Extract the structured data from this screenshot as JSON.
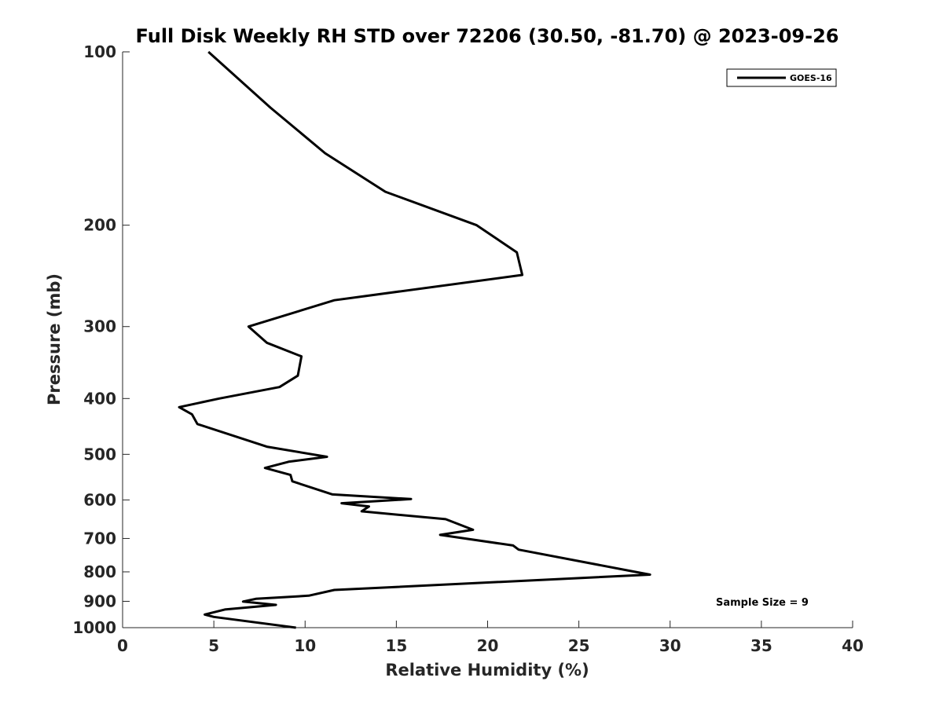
{
  "chart_data": {
    "type": "line",
    "title": "Full Disk Weekly RH STD over 72206 (30.50, -81.70) @ 2023-09-26",
    "xlabel": "Relative Humidity (%)",
    "ylabel": "Pressure (mb)",
    "xlim": [
      0,
      40
    ],
    "ylim": [
      100,
      1000
    ],
    "y_scale": "log",
    "y_reversed": true,
    "x_ticks": [
      0,
      5,
      10,
      15,
      20,
      25,
      30,
      35,
      40
    ],
    "y_ticks": [
      100,
      200,
      300,
      400,
      500,
      600,
      700,
      800,
      900,
      1000
    ],
    "grid": false,
    "legend_position": "top-right",
    "series": [
      {
        "name": "GOES-16",
        "color": "#000000",
        "points": [
          [
            4.7,
            100
          ],
          [
            8.1,
            125
          ],
          [
            11.1,
            150
          ],
          [
            14.4,
            175
          ],
          [
            19.4,
            200
          ],
          [
            21.6,
            223
          ],
          [
            21.9,
            244
          ],
          [
            11.6,
            270
          ],
          [
            6.9,
            300
          ],
          [
            7.9,
            320
          ],
          [
            9.8,
            338
          ],
          [
            9.6,
            365
          ],
          [
            8.6,
            382
          ],
          [
            5.3,
            400
          ],
          [
            3.1,
            414
          ],
          [
            3.8,
            426
          ],
          [
            4.1,
            443
          ],
          [
            7.9,
            485
          ],
          [
            11.2,
            505
          ],
          [
            9.1,
            515
          ],
          [
            7.8,
            528
          ],
          [
            9.2,
            543
          ],
          [
            9.3,
            557
          ],
          [
            11.5,
            587
          ],
          [
            15.8,
            598
          ],
          [
            12.0,
            608
          ],
          [
            13.5,
            616
          ],
          [
            13.1,
            628
          ],
          [
            17.7,
            648
          ],
          [
            19.2,
            676
          ],
          [
            17.4,
            690
          ],
          [
            21.4,
            720
          ],
          [
            21.7,
            732
          ],
          [
            28.1,
            800
          ],
          [
            28.9,
            809
          ],
          [
            11.6,
            860
          ],
          [
            10.2,
            880
          ],
          [
            7.3,
            891
          ],
          [
            6.6,
            901
          ],
          [
            8.4,
            913
          ],
          [
            5.6,
            930
          ],
          [
            4.5,
            949
          ],
          [
            5.0,
            958
          ],
          [
            9.5,
            1000
          ]
        ]
      }
    ],
    "annotations": [
      "Sample Size = 9"
    ]
  }
}
